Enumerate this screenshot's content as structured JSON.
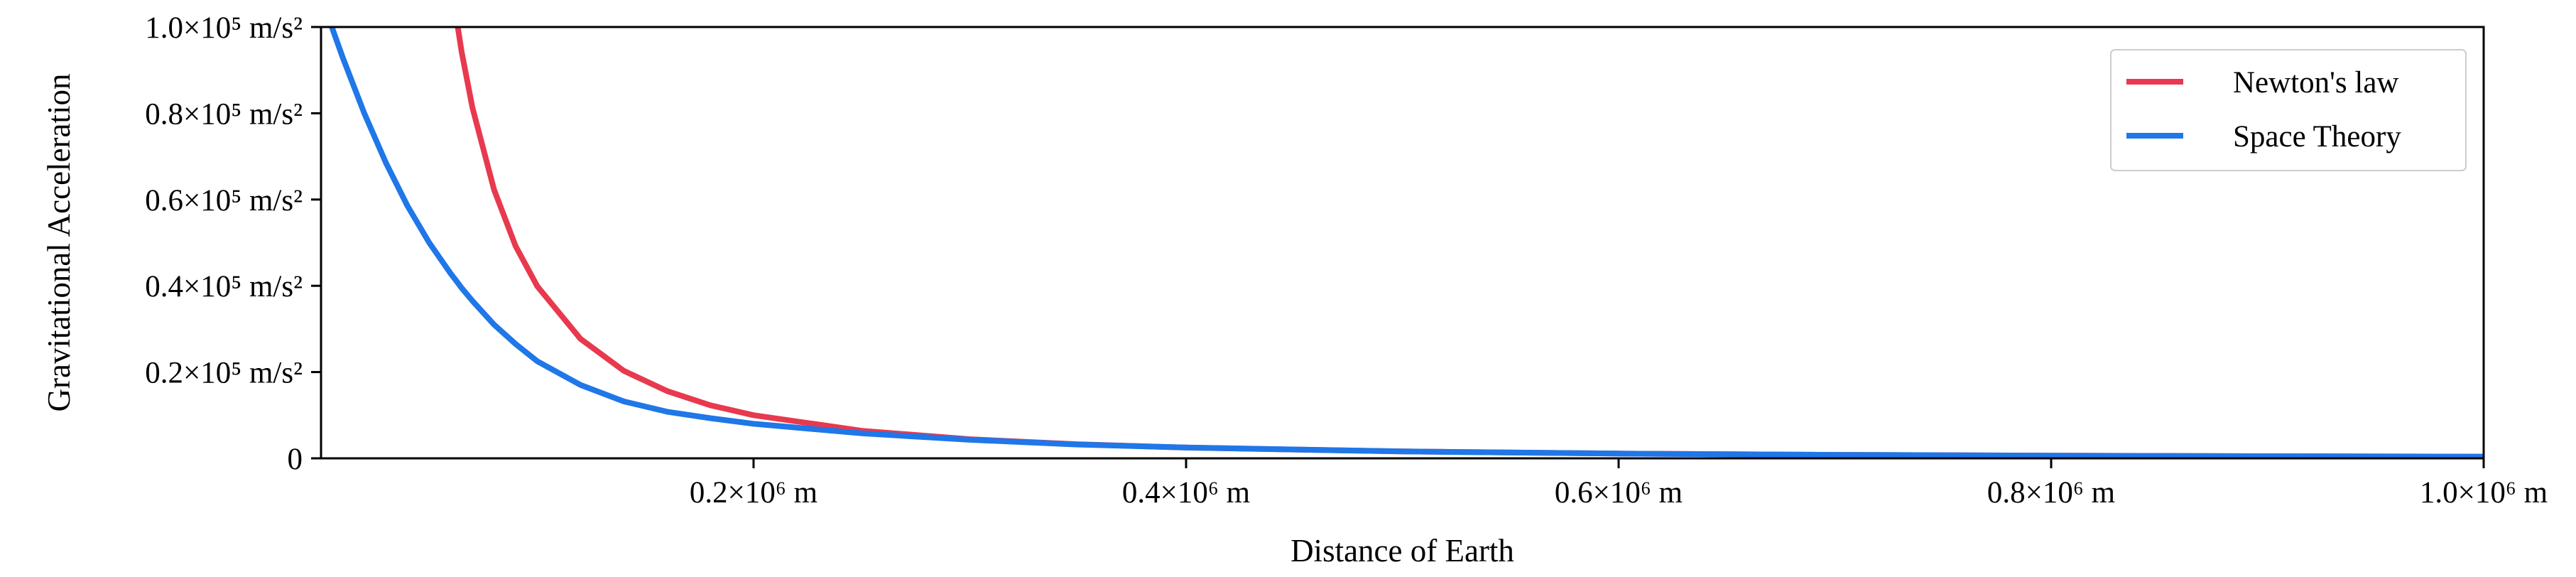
{
  "chart_data": {
    "type": "line",
    "title": "",
    "xlabel": "Distance of Earth",
    "ylabel": "Gravitational Acceleration",
    "xlim": [
      0,
      1000000
    ],
    "ylim": [
      0,
      100000
    ],
    "grid": false,
    "legend_position": "top-right",
    "x_ticks": [
      {
        "value": 200000,
        "label": "0.2×10⁶ m"
      },
      {
        "value": 400000,
        "label": "0.4×10⁶ m"
      },
      {
        "value": 600000,
        "label": "0.6×10⁶ m"
      },
      {
        "value": 800000,
        "label": "0.8×10⁶ m"
      },
      {
        "value": 1000000,
        "label": "1.0×10⁶ m"
      }
    ],
    "y_ticks": [
      {
        "value": 0,
        "label": "0"
      },
      {
        "value": 20000,
        "label": "0.2×10⁵ m/s²"
      },
      {
        "value": 40000,
        "label": "0.4×10⁵ m/s²"
      },
      {
        "value": 60000,
        "label": "0.6×10⁵ m/s²"
      },
      {
        "value": 80000,
        "label": "0.8×10⁵ m/s²"
      },
      {
        "value": 100000,
        "label": "1.0×10⁵ m/s²"
      }
    ],
    "x": [
      5000,
      10000,
      20000,
      30000,
      40000,
      50000,
      60000,
      62000,
      65000,
      70000,
      80000,
      90000,
      100000,
      120000,
      140000,
      160000,
      180000,
      200000,
      250000,
      300000,
      350000,
      400000,
      500000,
      600000,
      700000,
      800000,
      900000,
      1000000
    ],
    "series": [
      {
        "name": "Newton's law",
        "color": "#e8394e",
        "values": [
          null,
          null,
          null,
          null,
          null,
          null,
          null,
          104000,
          94300,
          81300,
          62300,
          49200,
          39900,
          27700,
          20300,
          15600,
          12300,
          10000,
          6400,
          4430,
          3260,
          2490,
          1600,
          1110,
          810,
          620,
          490,
          400
        ]
      },
      {
        "name": "Space Theory",
        "color": "#1f77e8",
        "values": [
          100000,
          93000,
          80000,
          68500,
          58500,
          50000,
          42800,
          41500,
          39500,
          36500,
          31000,
          26500,
          22500,
          17000,
          13200,
          10800,
          9300,
          8000,
          5800,
          4300,
          3200,
          2500,
          1600,
          1100,
          800,
          610,
          490,
          400
        ]
      }
    ]
  }
}
